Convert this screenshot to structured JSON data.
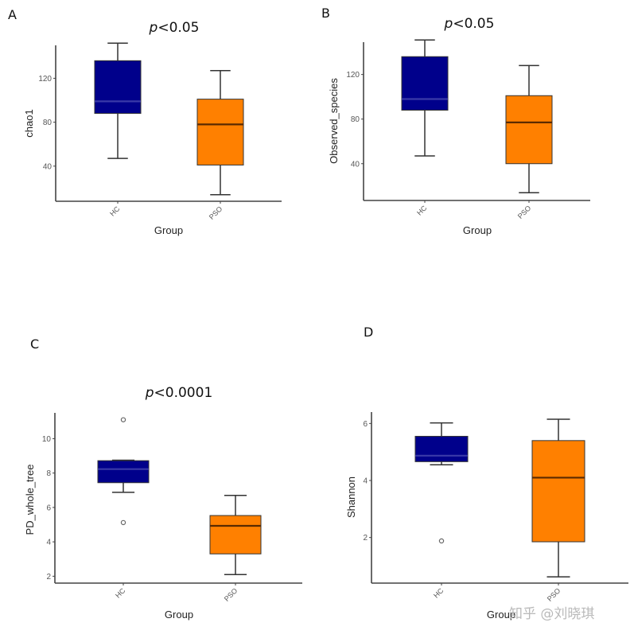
{
  "colors": {
    "HC": "#00008b",
    "PSO": "#ff8000",
    "HC_median": "#3a3aa8",
    "PSO_median": "#5a2a00"
  },
  "watermark": "知乎 @刘晓琪",
  "chart_data": [
    {
      "panel": "A",
      "type": "box",
      "title_p": "p",
      "title_rest": "<0.05",
      "xlabel": "Group",
      "ylabel": "chao1",
      "categories": [
        "HC",
        "PSO"
      ],
      "yticks": [
        40,
        80,
        120
      ],
      "ylim": [
        8,
        150
      ],
      "grid": false,
      "boxes": [
        {
          "group": "HC",
          "whisker_low": 47,
          "q1": 88,
          "median": 99,
          "q3": 136,
          "whisker_high": 152,
          "outliers": []
        },
        {
          "group": "PSO",
          "whisker_low": 14,
          "q1": 41,
          "median": 78,
          "q3": 101,
          "whisker_high": 127,
          "outliers": []
        }
      ]
    },
    {
      "panel": "B",
      "type": "box",
      "title_p": "p",
      "title_rest": "<0.05",
      "xlabel": "Group",
      "ylabel": "Observed_species",
      "categories": [
        "HC",
        "PSO"
      ],
      "yticks": [
        40,
        80,
        120
      ],
      "ylim": [
        7,
        149
      ],
      "grid": false,
      "boxes": [
        {
          "group": "HC",
          "whisker_low": 47,
          "q1": 88,
          "median": 98,
          "q3": 136,
          "whisker_high": 151,
          "outliers": []
        },
        {
          "group": "PSO",
          "whisker_low": 14,
          "q1": 40,
          "median": 77,
          "q3": 101,
          "whisker_high": 128,
          "outliers": []
        }
      ]
    },
    {
      "panel": "C",
      "type": "box",
      "title_p": "p",
      "title_rest": "<0.0001",
      "xlabel": "Group",
      "ylabel": "PD_whole_tree",
      "categories": [
        "HC",
        "PSO"
      ],
      "yticks": [
        2,
        4,
        6,
        8,
        10
      ],
      "ylim": [
        1.6,
        11.5
      ],
      "grid": false,
      "boxes": [
        {
          "group": "HC",
          "whisker_low": 6.88,
          "q1": 7.44,
          "median": 8.23,
          "q3": 8.72,
          "whisker_high": 8.75,
          "outliers": [
            11.1,
            5.12
          ]
        },
        {
          "group": "PSO",
          "whisker_low": 2.1,
          "q1": 3.3,
          "median": 4.93,
          "q3": 5.53,
          "whisker_high": 6.7,
          "outliers": []
        }
      ]
    },
    {
      "panel": "D",
      "type": "box",
      "title_p": "",
      "title_rest": "",
      "xlabel": "Group",
      "ylabel": "Shannon",
      "categories": [
        "HC",
        "PSO"
      ],
      "yticks": [
        2,
        4,
        6
      ],
      "ylim": [
        0.4,
        6.4
      ],
      "grid": false,
      "boxes": [
        {
          "group": "HC",
          "whisker_low": 4.55,
          "q1": 4.66,
          "median": 4.87,
          "q3": 5.55,
          "whisker_high": 6.02,
          "outliers": [
            1.88
          ]
        },
        {
          "group": "PSO",
          "whisker_low": 0.62,
          "q1": 1.85,
          "median": 4.1,
          "q3": 5.4,
          "whisker_high": 6.15,
          "outliers": []
        }
      ]
    }
  ]
}
